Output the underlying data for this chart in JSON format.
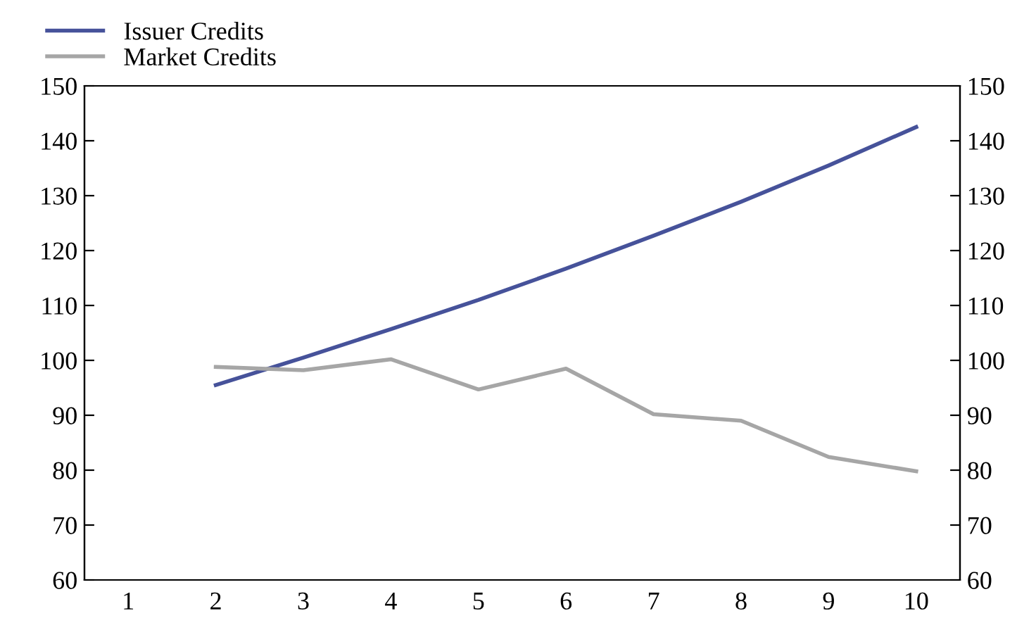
{
  "chart_data": {
    "type": "line",
    "categories": [
      "1",
      "2",
      "3",
      "4",
      "5",
      "6",
      "7",
      "8",
      "9",
      "10"
    ],
    "series": [
      {
        "name": "Issuer Credits",
        "color": "#46529a",
        "values": [
          null,
          95.5,
          100.5,
          105.7,
          111,
          116.7,
          122.7,
          128.9,
          135.5,
          142.5
        ]
      },
      {
        "name": "Market Credits",
        "color": "#a6a6a6",
        "values": [
          null,
          98.8,
          98.2,
          100.2,
          94.7,
          98.5,
          90.2,
          89,
          82.4,
          79.8
        ]
      }
    ],
    "ylim": [
      60,
      150
    ],
    "yticks": [
      60,
      70,
      80,
      90,
      100,
      110,
      120,
      130,
      140,
      150
    ],
    "y2lim": [
      60,
      150
    ],
    "y2ticks": [
      60,
      70,
      80,
      90,
      100,
      110,
      120,
      130,
      140,
      150
    ],
    "grid": false,
    "legend": "top left",
    "marker": "none",
    "line_style": "solid"
  }
}
